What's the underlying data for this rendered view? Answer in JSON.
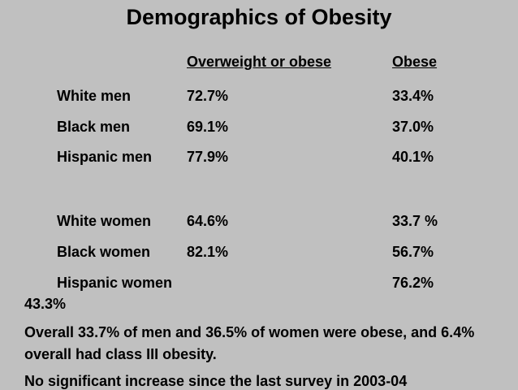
{
  "title": "Demographics of Obesity",
  "headers": {
    "overweight": "Overweight or obese",
    "obese": "Obese"
  },
  "rows": [
    {
      "label": "White men",
      "overweight": "72.7%",
      "obese": "33.4%"
    },
    {
      "label": "Black men",
      "overweight": "69.1%",
      "obese": "37.0%"
    },
    {
      "label": "Hispanic men",
      "overweight": "77.9%",
      "obese": "40.1%"
    },
    {
      "label": "White women",
      "overweight": "64.6%",
      "obese": "33.7 %"
    },
    {
      "label": "Black women",
      "overweight": "82.1%",
      "obese": "56.7%"
    },
    {
      "label": "Hispanic women",
      "overweight": "76.2%",
      "obese": "43.3%"
    }
  ],
  "summary": "Overall 33.7% of men and 36.5% of women were obese, and 6.4% overall had class III obesity.",
  "footnote": "No significant increase since the last survey in 2003-04"
}
